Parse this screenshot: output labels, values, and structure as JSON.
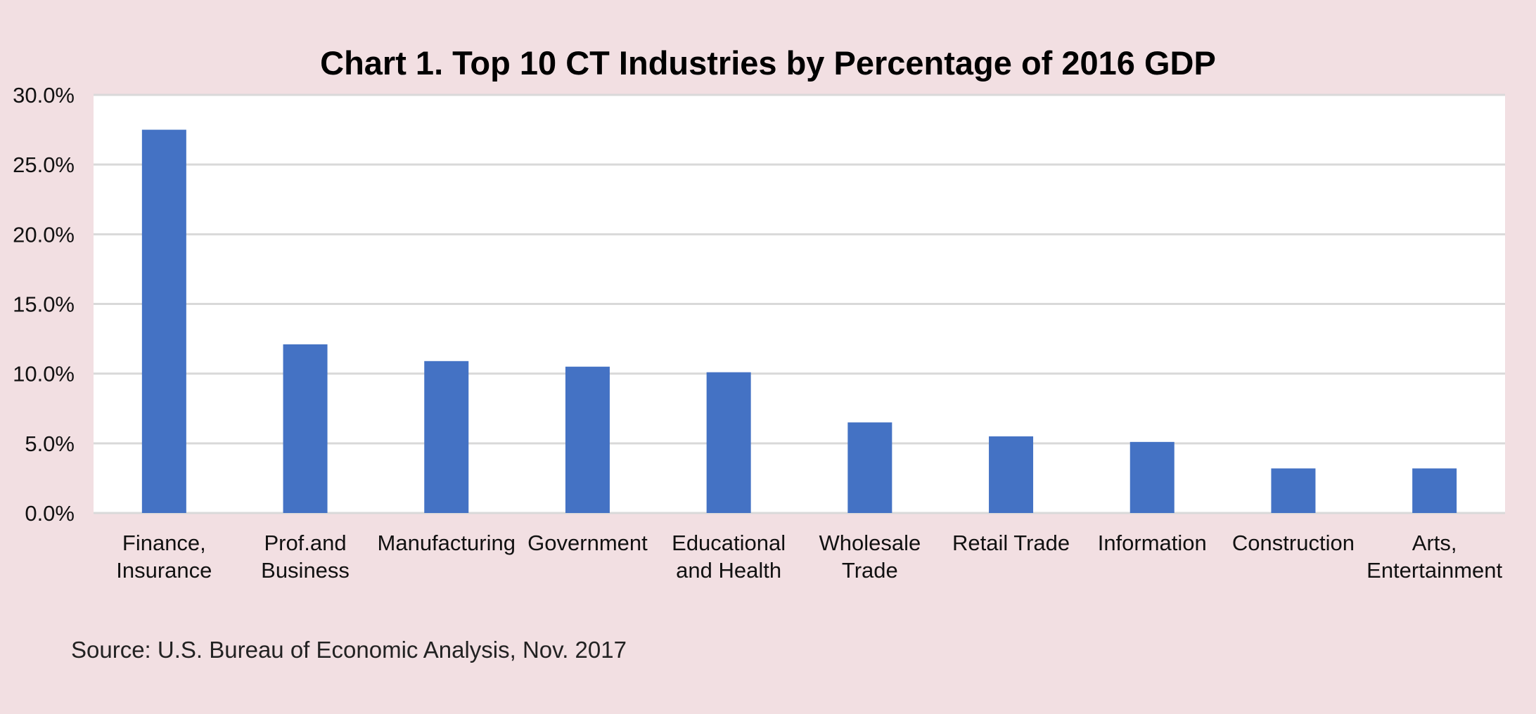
{
  "chart_data": {
    "type": "bar",
    "title": "Chart 1. Top 10 CT Industries by Percentage of 2016 GDP",
    "xlabel": "",
    "ylabel": "",
    "categories": [
      [
        "Finance,",
        "Insurance"
      ],
      [
        "Prof.and",
        "Business"
      ],
      [
        "Manufacturing"
      ],
      [
        "Government"
      ],
      [
        "Educational",
        "and Health"
      ],
      [
        "Wholesale",
        "Trade"
      ],
      [
        "Retail Trade"
      ],
      [
        "Information"
      ],
      [
        "Construction"
      ],
      [
        "Arts,",
        "Entertainment"
      ]
    ],
    "values": [
      27.5,
      12.1,
      10.9,
      10.5,
      10.1,
      6.5,
      5.5,
      5.1,
      3.2,
      3.2
    ],
    "ylim": [
      0,
      30
    ],
    "yticks": [
      "0.0%",
      "5.0%",
      "10.0%",
      "15.0%",
      "20.0%",
      "25.0%",
      "30.0%"
    ],
    "grid": true,
    "bar_color": "#4472c4",
    "plot_background": "#ffffff",
    "page_background": "#f2dfe2"
  },
  "source": "Source: U.S. Bureau of Economic Analysis, Nov. 2017"
}
